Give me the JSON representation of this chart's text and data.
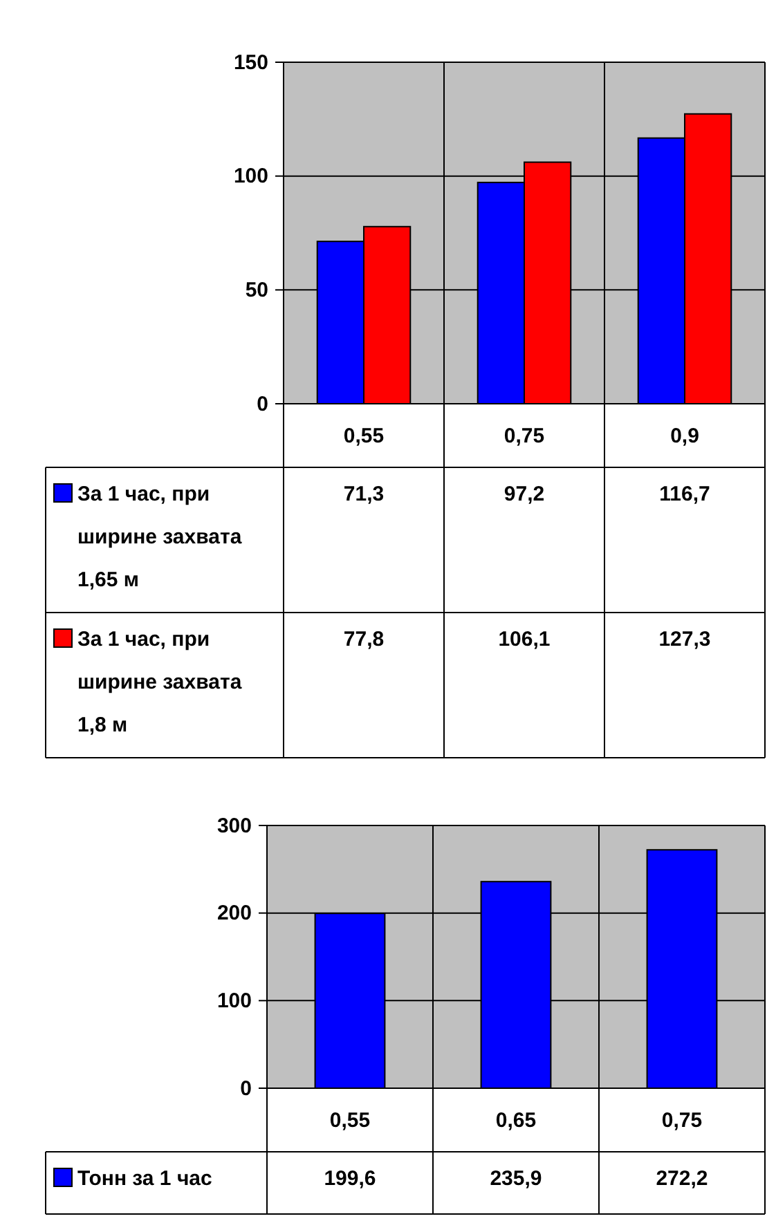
{
  "chart_data": [
    {
      "type": "bar",
      "categories": [
        "0,55",
        "0,75",
        "0,9"
      ],
      "series": [
        {
          "name": "За 1 час, при ширине захвата 1,65 м",
          "color": "#0000ff",
          "values": [
            71.3,
            97.2,
            116.7
          ],
          "value_labels": [
            "71,3",
            "97,2",
            "116,7"
          ]
        },
        {
          "name": "За 1 час, при ширине захвата 1,8 м",
          "color": "#ff0000",
          "values": [
            77.8,
            106.1,
            127.3
          ],
          "value_labels": [
            "77,8",
            "106,1",
            "127,3"
          ]
        }
      ],
      "ylim": [
        0,
        150
      ],
      "yticks": [
        0,
        50,
        100,
        150
      ],
      "grid": true,
      "legend": "bottom left"
    },
    {
      "type": "bar",
      "categories": [
        "0,55",
        "0,65",
        "0,75"
      ],
      "series": [
        {
          "name": "Тонн за 1 час",
          "color": "#0000ff",
          "values": [
            199.6,
            235.9,
            272.2
          ],
          "value_labels": [
            "199,6",
            "235,9",
            "272,2"
          ]
        }
      ],
      "ylim": [
        0,
        300
      ],
      "yticks": [
        0,
        100,
        200,
        300
      ],
      "grid": true,
      "legend": "bottom left"
    }
  ]
}
